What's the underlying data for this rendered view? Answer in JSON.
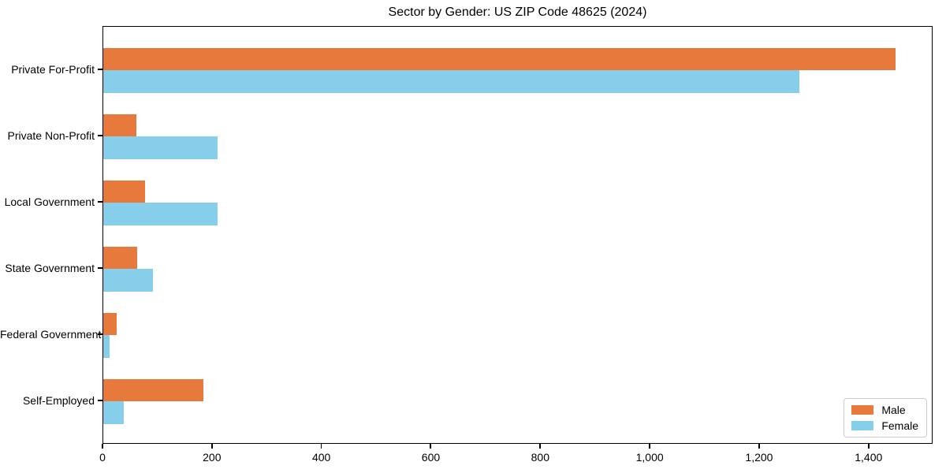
{
  "chart_data": {
    "type": "bar",
    "orientation": "horizontal",
    "title": "Sector by Gender: US ZIP Code 48625 (2024)",
    "categories": [
      "Private For-Profit",
      "Private Non-Profit",
      "Local Government",
      "State Government",
      "Federal Government",
      "Self-Employed"
    ],
    "series": [
      {
        "name": "Male",
        "color": "#e8793d",
        "values": [
          1450,
          61,
          76,
          62,
          25,
          183
        ]
      },
      {
        "name": "Female",
        "color": "#87ceeb",
        "values": [
          1274,
          210,
          210,
          91,
          11,
          38
        ]
      }
    ],
    "xlim": [
      0,
      1517
    ],
    "xticks": [
      0,
      200,
      400,
      600,
      800,
      1000,
      1200,
      1400
    ],
    "xtick_labels": [
      "0",
      "200",
      "400",
      "600",
      "800",
      "1,000",
      "1,200",
      "1,400"
    ],
    "grid": false,
    "legend": {
      "position": "lower right",
      "entries": [
        {
          "label": "Male",
          "color": "#e8793d"
        },
        {
          "label": "Female",
          "color": "#87ceeb"
        }
      ]
    }
  }
}
